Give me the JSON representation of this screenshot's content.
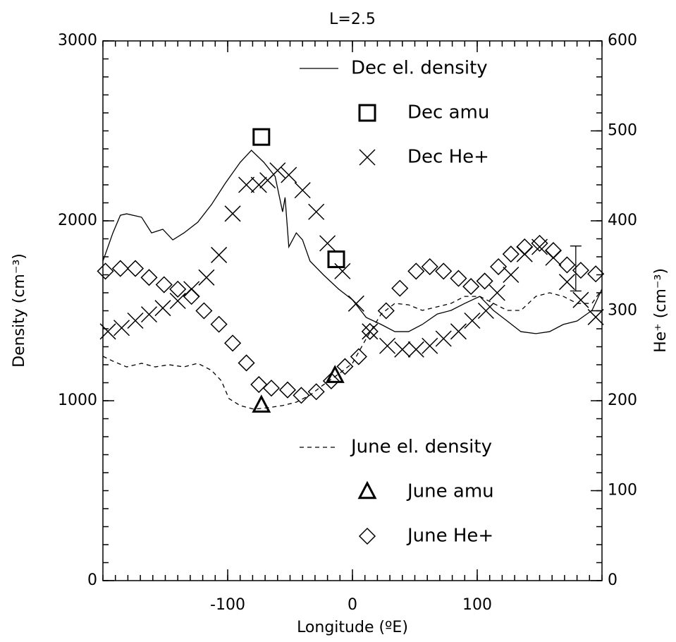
{
  "chart_data": {
    "type": "scatter",
    "title": "L=2.5",
    "x_label": "Longitude (ºE)",
    "y_label": "Density (cm⁻³)",
    "y2_label": "He⁺ (cm⁻³)",
    "xlim": [
      -200,
      200
    ],
    "xticks": [
      -100,
      0,
      100
    ],
    "xminor_step": 10,
    "ylim": [
      0,
      3000
    ],
    "yticks": [
      0,
      1000,
      2000,
      3000
    ],
    "yminor_step": 100,
    "y2lim": [
      0,
      600
    ],
    "y2ticks": [
      0,
      100,
      200,
      300,
      400,
      500,
      600
    ],
    "y2minor_step": 20,
    "series": [
      {
        "name": "Dec el. density",
        "color": "#000000",
        "line": "solid",
        "axis": "y",
        "legend": "upper right",
        "x": [
          -200,
          -192,
          -186,
          -181,
          -169,
          -161,
          -152,
          -144,
          -135,
          -124,
          -113,
          -102,
          -90,
          -81,
          -71,
          -62,
          -56,
          -54,
          -51,
          -45,
          -40,
          -34,
          -23,
          -11,
          0,
          11,
          23,
          34,
          45,
          56,
          68,
          79,
          90,
          102,
          113,
          124,
          135,
          147,
          158,
          169,
          180,
          192,
          200
        ],
        "values": [
          1776,
          1933,
          2031,
          2039,
          2020,
          1933,
          1953,
          1894,
          1933,
          1992,
          2090,
          2208,
          2325,
          2392,
          2325,
          2247,
          2050,
          2130,
          1855,
          1933,
          1894,
          1776,
          1698,
          1620,
          1561,
          1463,
          1424,
          1384,
          1384,
          1424,
          1482,
          1502,
          1541,
          1580,
          1502,
          1443,
          1384,
          1373,
          1384,
          1424,
          1443,
          1502,
          1620
        ]
      },
      {
        "name": "Dec amu",
        "color": "#000000",
        "marker": "square",
        "axis": "y",
        "legend": "upper right",
        "x": [
          -73,
          -13
        ],
        "values": [
          2466,
          1786
        ]
      },
      {
        "name": "Dec He+",
        "color": "#000000",
        "marker": "x",
        "axis": "y2",
        "legend": "upper right",
        "x": [
          -196,
          -185,
          -174,
          -163,
          -152,
          -140,
          -129,
          -117,
          -107,
          -96,
          -85,
          -75,
          -68,
          -60,
          -51,
          -40,
          -29,
          -20,
          -8,
          3,
          14,
          28,
          40,
          51,
          62,
          73,
          85,
          96,
          107,
          116,
          127,
          138,
          150,
          161,
          172,
          183,
          195
        ],
        "values": [
          277,
          281,
          289,
          296,
          303,
          311,
          324,
          337,
          362,
          408,
          440,
          440,
          445,
          456,
          451,
          434,
          410,
          375,
          344,
          308,
          277,
          261,
          257,
          257,
          261,
          269,
          277,
          289,
          300,
          320,
          340,
          363,
          371,
          359,
          332,
          312,
          293
        ]
      },
      {
        "name": "June el. density",
        "color": "#000000",
        "line": "dashed",
        "axis": "y",
        "legend": "lower right",
        "x": [
          -200,
          -192,
          -181,
          -169,
          -158,
          -147,
          -135,
          -124,
          -113,
          -105,
          -99,
          -90,
          -79,
          -68,
          -56,
          -45,
          -34,
          -23,
          -11,
          0,
          11,
          23,
          34,
          45,
          56,
          68,
          79,
          90,
          102,
          113,
          124,
          135,
          147,
          158,
          169,
          180,
          192,
          200
        ],
        "values": [
          1247,
          1220,
          1188,
          1208,
          1188,
          1200,
          1188,
          1208,
          1169,
          1110,
          1012,
          973,
          953,
          961,
          973,
          992,
          1031,
          1090,
          1149,
          1208,
          1345,
          1482,
          1541,
          1533,
          1502,
          1522,
          1541,
          1580,
          1580,
          1541,
          1502,
          1502,
          1580,
          1600,
          1580,
          1541,
          1541,
          1620
        ]
      },
      {
        "name": "June amu",
        "color": "#000000",
        "marker": "triangle",
        "axis": "y",
        "legend": "lower right",
        "x": [
          -73,
          -14
        ],
        "values": [
          974,
          1139
        ]
      },
      {
        "name": "June He+",
        "color": "#000000",
        "marker": "diamond",
        "axis": "y2",
        "legend": "lower right",
        "x": [
          -198,
          -186,
          -174,
          -163,
          -151,
          -140,
          -129,
          -119,
          -107,
          -96,
          -85,
          -75,
          -65,
          -52,
          -41,
          -29,
          -17,
          -6,
          5,
          14,
          27,
          38,
          51,
          62,
          73,
          85,
          95,
          106,
          117,
          127,
          138,
          150,
          161,
          172,
          183,
          195
        ],
        "values": [
          344,
          347,
          347,
          337,
          329,
          324,
          316,
          300,
          285,
          264,
          242,
          218,
          214,
          212,
          206,
          210,
          222,
          238,
          249,
          277,
          300,
          325,
          344,
          349,
          344,
          336,
          327,
          333,
          349,
          363,
          371,
          375,
          367,
          351,
          345,
          341
        ]
      }
    ],
    "error_bar": {
      "x": 179,
      "value": 347,
      "error": 25,
      "axis": "y2"
    }
  }
}
